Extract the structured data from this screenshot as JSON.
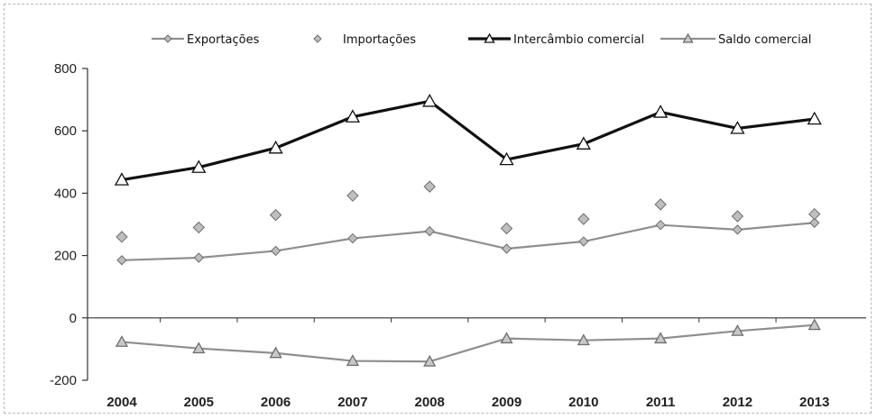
{
  "chart_data": {
    "type": "line",
    "title": "",
    "xlabel": "",
    "ylabel": "",
    "categories": [
      "2004",
      "2005",
      "2006",
      "2007",
      "2008",
      "2009",
      "2010",
      "2011",
      "2012",
      "2013"
    ],
    "ylim": [
      -200,
      800
    ],
    "yticks": [
      "800",
      "600",
      "400",
      "200",
      "0",
      "-200"
    ],
    "yticks_values": [
      800,
      600,
      400,
      200,
      0,
      -200
    ],
    "grid": false,
    "legend_position": "top",
    "series": [
      {
        "name": "Exportações",
        "marker": "diamond",
        "line": true,
        "color": "#8a8a8a",
        "values": [
          185,
          193,
          215,
          255,
          278,
          222,
          245,
          298,
          283,
          305
        ]
      },
      {
        "name": "Importações",
        "marker": "diamond",
        "line": false,
        "color": "#9a9a9a",
        "values": [
          260,
          290,
          330,
          392,
          421,
          287,
          317,
          364,
          326,
          333
        ]
      },
      {
        "name": "Intercâmbio comercial",
        "marker": "triangle",
        "line": true,
        "color": "#111111",
        "values": [
          443,
          483,
          545,
          645,
          695,
          508,
          558,
          660,
          608,
          638
        ]
      },
      {
        "name": "Saldo comercial",
        "marker": "triangle",
        "line": true,
        "color": "#8a8a8a",
        "values": [
          -77,
          -98,
          -113,
          -138,
          -140,
          -66,
          -72,
          -66,
          -42,
          -23
        ]
      }
    ]
  }
}
